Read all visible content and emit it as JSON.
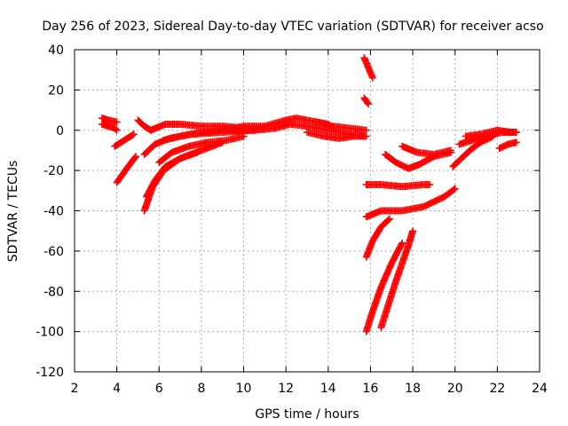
{
  "chart_data": {
    "type": "scatter",
    "title": "Day 256 of 2023, Sidereal Day-to-day VTEC variation (SDTVAR) for receiver acso",
    "xlabel": "GPS time / hours",
    "ylabel": "SDTVAR / TECUs",
    "xlim": [
      2,
      24
    ],
    "ylim": [
      -120,
      40
    ],
    "xticks": [
      2,
      4,
      6,
      8,
      10,
      12,
      14,
      16,
      18,
      20,
      22,
      24
    ],
    "yticks": [
      -120,
      -100,
      -80,
      -60,
      -40,
      -20,
      0,
      20,
      40
    ],
    "grid": true,
    "marker": "+",
    "color": "#ff0000",
    "tracks": [
      {
        "name": "t1",
        "x": [
          3.3,
          3.6,
          3.9,
          4.0
        ],
        "y": [
          3,
          2,
          1,
          0
        ]
      },
      {
        "name": "t2",
        "x": [
          3.3,
          3.6,
          4.0
        ],
        "y": [
          6,
          5,
          4
        ]
      },
      {
        "name": "t3",
        "x": [
          3.9,
          4.2,
          4.5,
          4.8
        ],
        "y": [
          -8,
          -6,
          -4,
          -2
        ]
      },
      {
        "name": "t4",
        "x": [
          4.0,
          4.4,
          4.9
        ],
        "y": [
          -26,
          -20,
          -13
        ]
      },
      {
        "name": "t5",
        "x": [
          5.0,
          5.3,
          5.6
        ],
        "y": [
          5,
          2,
          0
        ]
      },
      {
        "name": "t6",
        "x": [
          5.6,
          6.3,
          7.0,
          8.0,
          9.0,
          10.0
        ],
        "y": [
          0,
          3,
          3,
          2,
          2,
          1
        ]
      },
      {
        "name": "t7",
        "x": [
          5.3,
          5.8,
          6.5,
          7.5,
          9.0,
          10.5
        ],
        "y": [
          -12,
          -7,
          -4,
          -2,
          -1,
          0
        ]
      },
      {
        "name": "t8",
        "x": [
          5.3,
          5.7,
          6.2,
          7.0,
          8.0,
          9.0
        ],
        "y": [
          -40,
          -28,
          -20,
          -14,
          -10,
          -6
        ]
      },
      {
        "name": "t9",
        "x": [
          5.4,
          5.8,
          6.3,
          7.0,
          7.8
        ],
        "y": [
          -33,
          -25,
          -18,
          -14,
          -11
        ]
      },
      {
        "name": "t10",
        "x": [
          6.0,
          6.6,
          7.4,
          8.3,
          9.2,
          10.0
        ],
        "y": [
          -16,
          -11,
          -8,
          -6,
          -5,
          -3
        ]
      },
      {
        "name": "t11",
        "x": [
          6.2,
          7.0,
          8.0,
          9.0,
          10.0,
          11.0
        ],
        "y": [
          -5,
          -3,
          -1,
          0,
          0,
          1
        ]
      },
      {
        "name": "t12",
        "x": [
          9.0,
          10.0,
          11.0,
          12.0,
          12.5,
          13.0,
          14.0
        ],
        "y": [
          0,
          2,
          2,
          5,
          6,
          5,
          3
        ]
      },
      {
        "name": "t13",
        "x": [
          10.5,
          11.5,
          12.2,
          13.0,
          14.0,
          15.0,
          15.7
        ],
        "y": [
          0,
          1,
          3,
          2,
          0,
          -2,
          -3
        ]
      },
      {
        "name": "t14",
        "x": [
          13.0,
          13.8,
          14.5,
          15.2,
          15.8
        ],
        "y": [
          -1,
          -3,
          -4,
          -3,
          -3
        ]
      },
      {
        "name": "t15",
        "x": [
          13.5,
          14.2,
          15.0,
          15.8
        ],
        "y": [
          4,
          2,
          1,
          0
        ]
      },
      {
        "name": "t16",
        "x": [
          15.7,
          15.9,
          16.1
        ],
        "y": [
          36,
          31,
          26
        ]
      },
      {
        "name": "t17",
        "x": [
          15.7,
          15.9
        ],
        "y": [
          16,
          13
        ]
      },
      {
        "name": "t18",
        "x": [
          15.8,
          16.1,
          16.5,
          17.0,
          17.5
        ],
        "y": [
          -100,
          -90,
          -78,
          -66,
          -56
        ]
      },
      {
        "name": "t19",
        "x": [
          16.5,
          17.2,
          17.8,
          18.0
        ],
        "y": [
          -98,
          -75,
          -57,
          -50
        ]
      },
      {
        "name": "t20",
        "x": [
          15.8,
          16.1,
          16.5,
          16.9
        ],
        "y": [
          -63,
          -55,
          -48,
          -44
        ]
      },
      {
        "name": "t21",
        "x": [
          15.8,
          16.5,
          17.5,
          18.5,
          19.5,
          20.0
        ],
        "y": [
          -43,
          -40,
          -40,
          -38,
          -33,
          -29
        ]
      },
      {
        "name": "t22",
        "x": [
          15.8,
          16.5,
          17.5,
          18.5,
          18.8
        ],
        "y": [
          -27,
          -27,
          -28,
          -27,
          -27
        ]
      },
      {
        "name": "t23",
        "x": [
          16.7,
          17.2,
          17.8,
          18.3,
          19.0,
          19.8
        ],
        "y": [
          -12,
          -16,
          -19,
          -17,
          -13,
          -11
        ]
      },
      {
        "name": "t24",
        "x": [
          17.5,
          18.2,
          19.0,
          19.8
        ],
        "y": [
          -8,
          -11,
          -12,
          -10
        ]
      },
      {
        "name": "t25",
        "x": [
          19.9,
          20.3,
          20.7,
          21.2,
          21.8
        ],
        "y": [
          -18,
          -14,
          -10,
          -6,
          -3
        ]
      },
      {
        "name": "t26",
        "x": [
          20.2,
          20.8,
          21.5,
          22.2,
          22.9
        ],
        "y": [
          -7,
          -5,
          -3,
          -1,
          -1
        ]
      },
      {
        "name": "t27",
        "x": [
          20.5,
          21.2,
          22.0,
          22.6,
          22.9
        ],
        "y": [
          -3,
          -2,
          0,
          -1,
          -1
        ]
      },
      {
        "name": "t28",
        "x": [
          22.1,
          22.5,
          22.9
        ],
        "y": [
          -9,
          -7,
          -6
        ]
      }
    ]
  }
}
